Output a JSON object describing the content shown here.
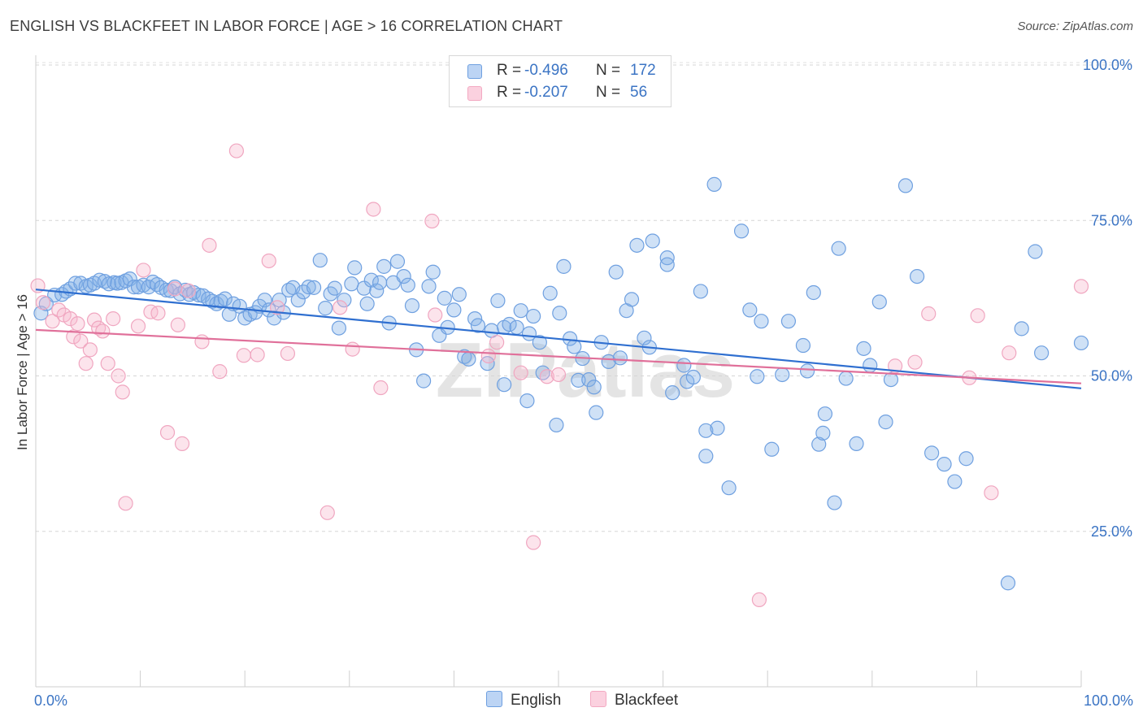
{
  "title": "ENGLISH VS BLACKFEET IN LABOR FORCE | AGE > 16 CORRELATION CHART",
  "source": "Source: ZipAtlas.com",
  "watermark": "ZIPatlas",
  "legend": {
    "rows": [
      {
        "r_label": "R =",
        "r_value": "-0.496",
        "n_label": "N =",
        "n_value": "172"
      },
      {
        "r_label": "R =",
        "r_value": "-0.207",
        "n_label": "N =",
        "n_value": "56"
      }
    ]
  },
  "chart_data": {
    "type": "scatter",
    "ylabel": "In Labor Force | Age > 16",
    "x_tick_labels": {
      "left": "0.0%",
      "right": "100.0%"
    },
    "y_tick_labels": [
      "100.0%",
      "75.0%",
      "50.0%",
      "25.0%"
    ],
    "xlim": [
      0,
      100
    ],
    "ylim": [
      0,
      100
    ],
    "grid": "horizontal dashed",
    "legend_placement": "top-center and bottom",
    "colors": {
      "English": "#6fa0e0",
      "Blackfeet": "#f3a9c2",
      "english_line": "#2f6fd0",
      "blackfeet_line": "#e0709a",
      "accent_text": "#3b74c4"
    },
    "series": [
      {
        "name": "English",
        "trend": {
          "x0": 0,
          "y0": 63.9,
          "x1": 100,
          "y1": 48.0
        },
        "points": [
          [
            0.5,
            60.1
          ],
          [
            1,
            61.6
          ],
          [
            1.8,
            63.0
          ],
          [
            2.5,
            63.1
          ],
          [
            2.9,
            63.6
          ],
          [
            3.3,
            64.0
          ],
          [
            3.8,
            64.9
          ],
          [
            4.3,
            64.9
          ],
          [
            4.8,
            64.4
          ],
          [
            5.2,
            64.6
          ],
          [
            5.6,
            64.9
          ],
          [
            6.1,
            65.4
          ],
          [
            6.6,
            65.2
          ],
          [
            7,
            64.8
          ],
          [
            7.5,
            65.0
          ],
          [
            7.8,
            64.9
          ],
          [
            8.2,
            65.0
          ],
          [
            8.6,
            65.3
          ],
          [
            9.0,
            65.6
          ],
          [
            9.4,
            64.3
          ],
          [
            9.8,
            64.3
          ],
          [
            10.3,
            64.6
          ],
          [
            10.8,
            64.3
          ],
          [
            11.2,
            65.1
          ],
          [
            11.6,
            64.7
          ],
          [
            12.0,
            64.2
          ],
          [
            12.5,
            63.8
          ],
          [
            12.9,
            63.7
          ],
          [
            13.3,
            64.3
          ],
          [
            13.8,
            63.2
          ],
          [
            14.3,
            63.8
          ],
          [
            14.7,
            63.1
          ],
          [
            15.1,
            63.4
          ],
          [
            15.6,
            63.0
          ],
          [
            16.0,
            62.9
          ],
          [
            16.5,
            62.4
          ],
          [
            16.9,
            62.0
          ],
          [
            17.3,
            61.6
          ],
          [
            17.7,
            62.0
          ],
          [
            18.1,
            62.4
          ],
          [
            18.5,
            59.9
          ],
          [
            18.9,
            61.6
          ],
          [
            19.5,
            61.2
          ],
          [
            20.0,
            59.3
          ],
          [
            20.5,
            59.9
          ],
          [
            21.0,
            60.2
          ],
          [
            21.4,
            61.2
          ],
          [
            21.9,
            62.2
          ],
          [
            22.3,
            60.6
          ],
          [
            22.8,
            59.3
          ],
          [
            23.3,
            62.2
          ],
          [
            23.7,
            60.2
          ],
          [
            24.2,
            63.8
          ],
          [
            24.6,
            64.2
          ],
          [
            25.1,
            62.2
          ],
          [
            25.6,
            63.5
          ],
          [
            26.1,
            64.3
          ],
          [
            26.6,
            64.2
          ],
          [
            27.2,
            68.6
          ],
          [
            27.7,
            60.9
          ],
          [
            28.2,
            63.2
          ],
          [
            28.6,
            64.1
          ],
          [
            29.0,
            57.7
          ],
          [
            29.5,
            62.2
          ],
          [
            30.2,
            64.8
          ],
          [
            30.5,
            67.4
          ],
          [
            31.4,
            64.1
          ],
          [
            31.7,
            61.6
          ],
          [
            32.1,
            65.4
          ],
          [
            32.6,
            63.7
          ],
          [
            32.9,
            65.0
          ],
          [
            33.3,
            67.6
          ],
          [
            33.8,
            58.5
          ],
          [
            34.2,
            65.0
          ],
          [
            34.6,
            68.4
          ],
          [
            35.2,
            66.0
          ],
          [
            35.6,
            64.6
          ],
          [
            36.0,
            61.3
          ],
          [
            36.4,
            54.2
          ],
          [
            37.1,
            49.2
          ],
          [
            37.6,
            64.4
          ],
          [
            38.0,
            66.7
          ],
          [
            38.6,
            56.5
          ],
          [
            39.1,
            62.5
          ],
          [
            39.4,
            57.8
          ],
          [
            40.0,
            60.6
          ],
          [
            40.5,
            63.1
          ],
          [
            41.0,
            53.1
          ],
          [
            41.4,
            52.7
          ],
          [
            42.0,
            59.2
          ],
          [
            42.3,
            58.1
          ],
          [
            43.2,
            52.0
          ],
          [
            43.6,
            57.3
          ],
          [
            44.2,
            62.1
          ],
          [
            44.8,
            48.6
          ],
          [
            44.8,
            57.8
          ],
          [
            45.3,
            58.3
          ],
          [
            46.0,
            57.8
          ],
          [
            46.4,
            60.5
          ],
          [
            47.0,
            46.0
          ],
          [
            47.2,
            56.8
          ],
          [
            47.6,
            59.6
          ],
          [
            48.2,
            55.4
          ],
          [
            48.5,
            50.5
          ],
          [
            49.2,
            63.3
          ],
          [
            49.8,
            42.1
          ],
          [
            50.1,
            60.1
          ],
          [
            50.5,
            67.6
          ],
          [
            51.1,
            56.0
          ],
          [
            51.5,
            54.7
          ],
          [
            51.9,
            49.3
          ],
          [
            52.3,
            52.8
          ],
          [
            52.9,
            49.4
          ],
          [
            53.4,
            48.2
          ],
          [
            53.6,
            44.1
          ],
          [
            54.1,
            55.4
          ],
          [
            54.8,
            52.3
          ],
          [
            55.5,
            66.7
          ],
          [
            55.9,
            52.9
          ],
          [
            56.5,
            60.5
          ],
          [
            57.0,
            62.3
          ],
          [
            57.5,
            71.0
          ],
          [
            58.2,
            56.1
          ],
          [
            58.7,
            54.6
          ],
          [
            59.0,
            71.7
          ],
          [
            60.4,
            69.0
          ],
          [
            60.4,
            67.9
          ],
          [
            60.9,
            47.3
          ],
          [
            62.0,
            51.7
          ],
          [
            62.3,
            49.1
          ],
          [
            62.9,
            49.8
          ],
          [
            63.6,
            63.6
          ],
          [
            64.1,
            37.1
          ],
          [
            64.1,
            41.2
          ],
          [
            64.9,
            80.8
          ],
          [
            65.2,
            41.6
          ],
          [
            66.3,
            32.0
          ],
          [
            67.5,
            73.3
          ],
          [
            68.3,
            60.6
          ],
          [
            69.0,
            49.9
          ],
          [
            69.4,
            58.8
          ],
          [
            70.4,
            38.2
          ],
          [
            71.4,
            50.2
          ],
          [
            72.0,
            58.8
          ],
          [
            73.4,
            54.9
          ],
          [
            73.8,
            50.8
          ],
          [
            74.4,
            63.4
          ],
          [
            74.9,
            39.0
          ],
          [
            75.3,
            40.8
          ],
          [
            75.5,
            43.9
          ],
          [
            76.4,
            29.6
          ],
          [
            76.8,
            70.5
          ],
          [
            77.5,
            49.6
          ],
          [
            78.5,
            39.1
          ],
          [
            79.2,
            54.4
          ],
          [
            79.8,
            51.7
          ],
          [
            80.7,
            61.9
          ],
          [
            81.3,
            42.6
          ],
          [
            81.8,
            49.4
          ],
          [
            83.2,
            80.6
          ],
          [
            84.3,
            66.0
          ],
          [
            85.7,
            37.6
          ],
          [
            86.9,
            35.8
          ],
          [
            87.9,
            33.0
          ],
          [
            89.0,
            36.7
          ],
          [
            93.0,
            16.7
          ],
          [
            94.3,
            57.6
          ],
          [
            95.6,
            70.0
          ],
          [
            96.2,
            53.7
          ],
          [
            100.0,
            55.3
          ]
        ]
      },
      {
        "name": "Blackfeet",
        "trend": {
          "x0": 0,
          "y0": 57.4,
          "x1": 100,
          "y1": 48.8
        },
        "points": [
          [
            0.2,
            64.5
          ],
          [
            0.7,
            61.8
          ],
          [
            1.6,
            58.8
          ],
          [
            2.2,
            60.6
          ],
          [
            2.7,
            59.8
          ],
          [
            3.3,
            59.2
          ],
          [
            3.6,
            56.3
          ],
          [
            4.0,
            58.4
          ],
          [
            4.3,
            55.6
          ],
          [
            4.8,
            52.0
          ],
          [
            5.2,
            54.2
          ],
          [
            5.6,
            59.0
          ],
          [
            6.0,
            57.7
          ],
          [
            6.4,
            57.2
          ],
          [
            6.9,
            52.0
          ],
          [
            7.4,
            59.2
          ],
          [
            7.9,
            50.0
          ],
          [
            8.3,
            47.4
          ],
          [
            8.6,
            29.5
          ],
          [
            9.8,
            58.0
          ],
          [
            10.3,
            67.0
          ],
          [
            11.0,
            60.3
          ],
          [
            11.7,
            60.1
          ],
          [
            12.6,
            40.9
          ],
          [
            13.3,
            64.0
          ],
          [
            13.6,
            58.2
          ],
          [
            14.0,
            39.1
          ],
          [
            14.6,
            63.7
          ],
          [
            15.9,
            55.5
          ],
          [
            16.6,
            71.0
          ],
          [
            17.6,
            50.7
          ],
          [
            19.2,
            86.2
          ],
          [
            19.9,
            53.3
          ],
          [
            21.2,
            53.4
          ],
          [
            22.3,
            68.5
          ],
          [
            23.1,
            61.0
          ],
          [
            24.1,
            53.6
          ],
          [
            27.9,
            28.0
          ],
          [
            29.1,
            61.0
          ],
          [
            30.3,
            54.3
          ],
          [
            32.3,
            76.8
          ],
          [
            33.0,
            48.1
          ],
          [
            37.9,
            74.9
          ],
          [
            38.2,
            59.8
          ],
          [
            43.3,
            53.2
          ],
          [
            44.1,
            55.4
          ],
          [
            46.4,
            50.5
          ],
          [
            47.6,
            23.2
          ],
          [
            48.9,
            49.9
          ],
          [
            50.0,
            50.2
          ],
          [
            69.2,
            14.0
          ],
          [
            82.2,
            51.6
          ],
          [
            84.1,
            52.2
          ],
          [
            85.4,
            60.0
          ],
          [
            89.3,
            49.7
          ],
          [
            90.1,
            59.7
          ],
          [
            91.4,
            31.2
          ],
          [
            93.1,
            53.7
          ],
          [
            100.0,
            64.4
          ]
        ]
      }
    ]
  }
}
